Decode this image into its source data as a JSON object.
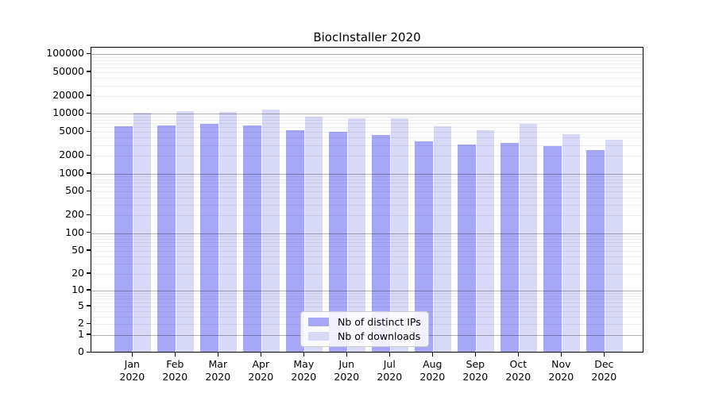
{
  "title": "BiocInstaller 2020",
  "colors": {
    "ips_bar": "#a7a7f7",
    "downloads_bar": "#d8d8f7",
    "major_grid": "#b0b0b0",
    "minor_grid": "#ededed",
    "axis": "#000000"
  },
  "legend": {
    "items": [
      {
        "label": "Nb of distinct IPs"
      },
      {
        "label": "Nb of downloads"
      }
    ]
  },
  "chart_data": {
    "type": "bar",
    "title": "BiocInstaller 2020",
    "categories": [
      "Jan 2020",
      "Feb 2020",
      "Mar 2020",
      "Apr 2020",
      "May 2020",
      "Jun 2020",
      "Jul 2020",
      "Aug 2020",
      "Sep 2020",
      "Oct 2020",
      "Nov 2020",
      "Dec 2020"
    ],
    "series": [
      {
        "name": "Nb of distinct IPs",
        "color": "#a7a7f7",
        "values": [
          6200,
          6400,
          6800,
          6500,
          5300,
          5000,
          4500,
          3500,
          3100,
          3300,
          2900,
          2500
        ]
      },
      {
        "name": "Nb of downloads",
        "color": "#d8d8f7",
        "values": [
          10400,
          11000,
          10800,
          11700,
          9100,
          8400,
          8500,
          6200,
          5300,
          6800,
          4600,
          3700
        ]
      }
    ],
    "xlabel": "",
    "ylabel": "",
    "yscale": "log1p",
    "y_ticks": [
      0,
      1,
      2,
      5,
      10,
      20,
      50,
      100,
      200,
      500,
      1000,
      2000,
      5000,
      10000,
      20000,
      50000,
      100000
    ],
    "ylim": [
      0,
      131000
    ],
    "grid": "horizontal, major (powers of 10) and minor lines, drawn over bars",
    "legend_position": "lower center"
  }
}
